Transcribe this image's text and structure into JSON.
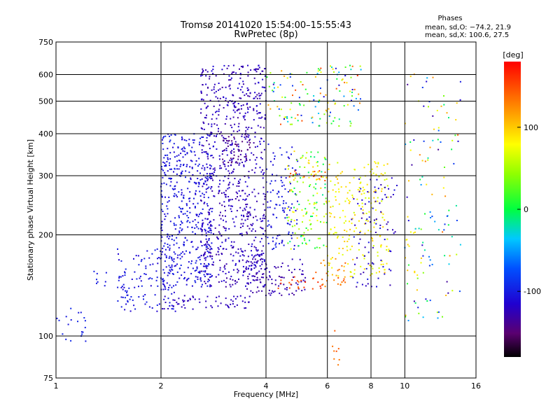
{
  "chart_data": {
    "type": "scatter",
    "title": "Tromsø 20141020 15:54:00–15:55:43",
    "subtitle": "RwPretec (8p)",
    "xlabel": "Frequency [MHz]",
    "ylabel": "Stationary phase Virtual Height [km]",
    "x_scale": "log",
    "y_scale": "log",
    "xlim": [
      1,
      16
    ],
    "ylim": [
      75,
      750
    ],
    "x_ticks": [
      1,
      2,
      4,
      6,
      8,
      10,
      16
    ],
    "y_ticks": [
      75,
      100,
      200,
      300,
      400,
      500,
      600,
      750
    ],
    "grid": true,
    "phase_stats": {
      "heading": "Phases",
      "line_o": "mean, sd,O: −74.2, 21.9",
      "line_x": "mean, sd,X: 100.6, 27.5"
    },
    "colorbar": {
      "label": "[deg]",
      "range": [
        -180,
        180
      ],
      "ticks": [
        100,
        0,
        -100
      ],
      "colormap": "rainbow"
    },
    "clusters": [
      {
        "x": [
          1.0,
          1.22
        ],
        "y": [
          96,
          125
        ],
        "phase": [
          -105,
          -90
        ],
        "density": 0.5
      },
      {
        "x": [
          1.28,
          1.4
        ],
        "y": [
          140,
          158
        ],
        "phase": [
          -105,
          -95
        ],
        "density": 0.4
      },
      {
        "x": [
          1.5,
          2.2
        ],
        "y": [
          118,
          185
        ],
        "phase": [
          -115,
          -95
        ],
        "density": 1.0
      },
      {
        "x": [
          2.0,
          3.6
        ],
        "y": [
          120,
          132
        ],
        "phase": [
          -125,
          -120
        ],
        "density": 1.5
      },
      {
        "x": [
          2.0,
          2.8
        ],
        "y": [
          140,
          400
        ],
        "phase": [
          -115,
          -95
        ],
        "density": 1.8
      },
      {
        "x": [
          2.6,
          4.0
        ],
        "y": [
          140,
          640
        ],
        "phase": [
          -135,
          -110
        ],
        "density": 1.6
      },
      {
        "x": [
          3.0,
          3.6
        ],
        "y": [
          320,
          400
        ],
        "phase": [
          -150,
          -140
        ],
        "density": 1.2
      },
      {
        "x": [
          3.5,
          5.2
        ],
        "y": [
          132,
          170
        ],
        "phase": [
          -135,
          -120
        ],
        "density": 1.3
      },
      {
        "x": [
          4.0,
          5.0
        ],
        "y": [
          180,
          380
        ],
        "phase": [
          -115,
          -95
        ],
        "density": 0.9
      },
      {
        "x": [
          4.3,
          5.8
        ],
        "y": [
          138,
          150
        ],
        "phase": [
          135,
          165
        ],
        "density": 1.2
      },
      {
        "x": [
          4.6,
          6.0
        ],
        "y": [
          290,
          310
        ],
        "phase": [
          140,
          160
        ],
        "density": 1.1
      },
      {
        "x": [
          4.6,
          6.0
        ],
        "y": [
          180,
          360
        ],
        "phase": [
          -20,
          100
        ],
        "density": 1.0
      },
      {
        "x": [
          5.5,
          6.8
        ],
        "y": [
          140,
          170
        ],
        "phase": [
          110,
          150
        ],
        "density": 0.8
      },
      {
        "x": [
          6.0,
          9.0
        ],
        "y": [
          150,
          330
        ],
        "phase": [
          60,
          105
        ],
        "density": 0.9
      },
      {
        "x": [
          7.0,
          9.5
        ],
        "y": [
          140,
          300
        ],
        "phase": [
          -130,
          -100
        ],
        "density": 0.5
      },
      {
        "x": [
          4.0,
          7.5
        ],
        "y": [
          420,
          640
        ],
        "phase": [
          -120,
          160
        ],
        "density": 0.7
      },
      {
        "x": [
          10.0,
          11.0
        ],
        "y": [
          150,
          240
        ],
        "phase": [
          70,
          100
        ],
        "density": 0.4
      },
      {
        "x": [
          10.0,
          14.5
        ],
        "y": [
          110,
          620
        ],
        "phase": [
          -140,
          140
        ],
        "density": 0.25
      },
      {
        "x": [
          6.2,
          6.7
        ],
        "y": [
          76,
          105
        ],
        "phase": [
          130,
          160
        ],
        "density": 0.2
      }
    ]
  }
}
